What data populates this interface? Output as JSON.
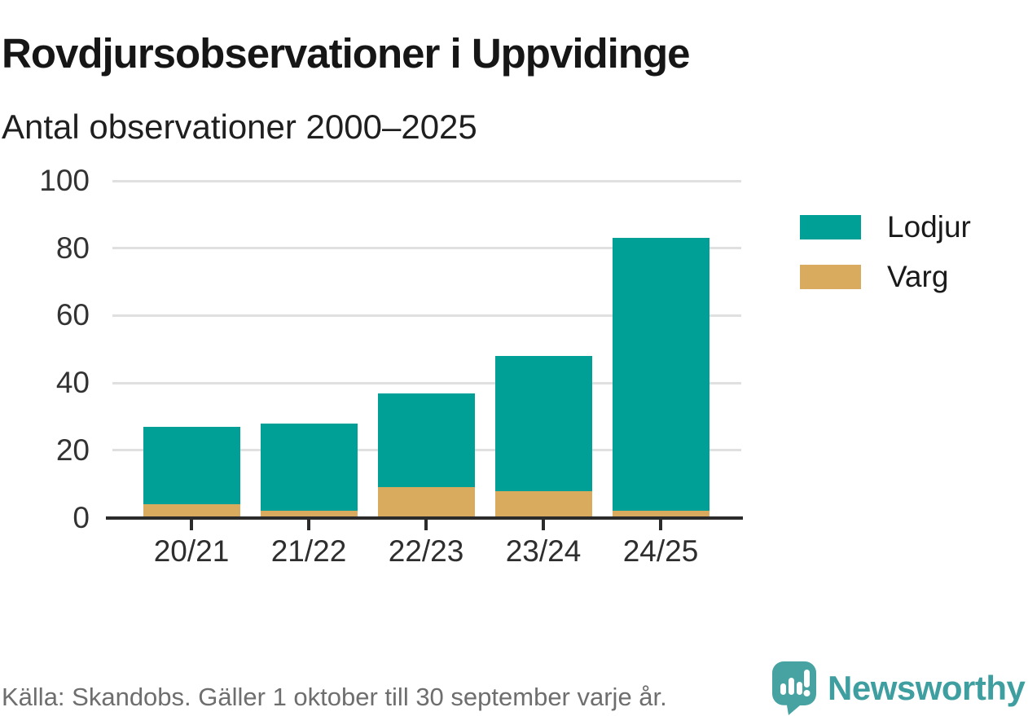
{
  "title": "Rovdjursobservationer i Uppvidinge",
  "subtitle": "Antal observationer 2000–2025",
  "footer": {
    "source": "Källa: Skandobs. Gäller 1 oktober till 30 september varje år.",
    "brand": "Newsworthy",
    "brand_color": "#3f9fa0",
    "brand_icon": "newsworthy-speech-bubble-bar-chart-icon",
    "brand_icon_color": "#47a3a2"
  },
  "chart_data": {
    "type": "bar",
    "stacked": true,
    "title": "Rovdjursobservationer i Uppvidinge",
    "subtitle": "Antal observationer 2000–2025",
    "categories": [
      "20/21",
      "21/22",
      "22/23",
      "23/24",
      "24/25"
    ],
    "series": [
      {
        "name": "Lodjur",
        "color": "#00a096",
        "values": [
          23,
          26,
          28,
          40,
          81
        ]
      },
      {
        "name": "Varg",
        "color": "#d9ab5e",
        "values": [
          4,
          2,
          9,
          8,
          2
        ]
      }
    ],
    "stack_order_bottom_to_top": [
      "Varg",
      "Lodjur"
    ],
    "stacked_totals": [
      27,
      28,
      37,
      48,
      83
    ],
    "xlabel": "",
    "ylabel": "",
    "ylim": [
      0,
      100
    ],
    "yticks": [
      0,
      20,
      40,
      60,
      80,
      100
    ],
    "grid": "horizontal-light-gray",
    "legend_position": "right",
    "axis_color": "#2b2b2b",
    "gridline_color": "#e0e0e0"
  }
}
